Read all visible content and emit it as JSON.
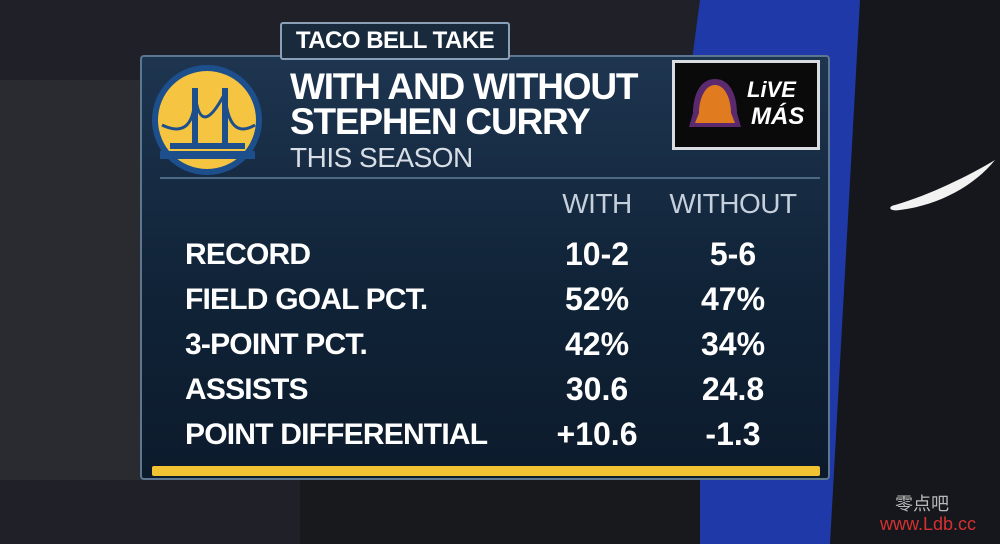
{
  "header": {
    "tag": "TACO BELL TAKE",
    "title_line1": "WITH AND WITHOUT",
    "title_line2": "STEPHEN CURRY",
    "subtitle": "THIS SEASON",
    "sponsor_line1": "LiVE",
    "sponsor_line2": "MÁS"
  },
  "table": {
    "columns": [
      "WITH",
      "WITHOUT"
    ],
    "rows": [
      [
        "RECORD",
        "10-2",
        "5-6"
      ],
      [
        "FIELD GOAL PCT.",
        "52%",
        "47%"
      ],
      [
        "3-POINT PCT.",
        "42%",
        "34%"
      ],
      [
        "ASSISTS",
        "30.6",
        "24.8"
      ],
      [
        "POINT DIFFERENTIAL",
        "+10.6",
        "-1.3"
      ]
    ]
  },
  "watermark": {
    "line1": "零点吧",
    "line2": "www.Ldb.cc"
  }
}
